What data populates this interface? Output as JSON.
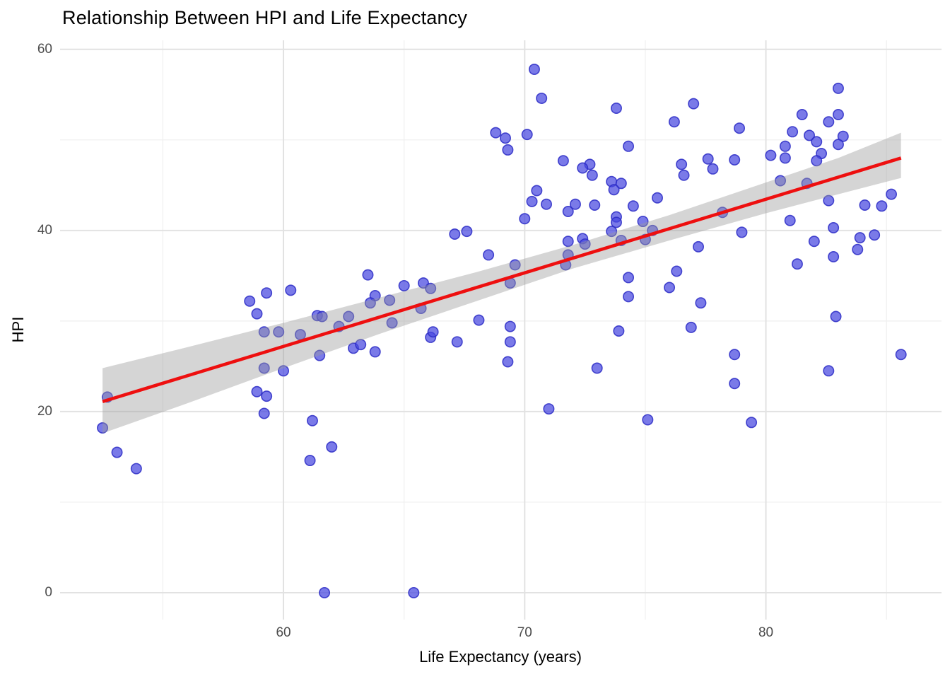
{
  "chart_data": {
    "type": "scatter",
    "title": "Relationship Between HPI and Life Expectancy",
    "xlabel": "Life Expectancy (years)",
    "ylabel": "HPI",
    "xlim": [
      50.74,
      87.28
    ],
    "ylim": [
      -2.97,
      61.0
    ],
    "x_ticks": [
      60,
      70,
      80
    ],
    "x_minor_ticks": [
      55,
      65,
      75,
      85
    ],
    "y_ticks": [
      0,
      20,
      40,
      60
    ],
    "y_minor_ticks": [
      10,
      30,
      50
    ],
    "grid": "on",
    "legend": "none",
    "colors": {
      "point_fill": "#4646df",
      "point_stroke": "#2c2cc6",
      "regression_line": "#ee0f0f",
      "confidence_band": "#9b9b9b",
      "grid_major": "#e2e2e2",
      "grid_minor": "#efefef",
      "tick_text": "#4d4d4d",
      "title_text": "#000000"
    },
    "points": [
      [
        70.4,
        57.8
      ],
      [
        70.7,
        54.6
      ],
      [
        73.8,
        53.5
      ],
      [
        77.0,
        54.0
      ],
      [
        76.2,
        52.0
      ],
      [
        70.1,
        50.6
      ],
      [
        68.8,
        50.8
      ],
      [
        69.2,
        50.2
      ],
      [
        69.3,
        48.9
      ],
      [
        74.3,
        49.3
      ],
      [
        71.6,
        47.7
      ],
      [
        72.7,
        47.3
      ],
      [
        72.4,
        46.9
      ],
      [
        72.8,
        46.1
      ],
      [
        73.6,
        45.4
      ],
      [
        74.0,
        45.2
      ],
      [
        73.7,
        44.5
      ],
      [
        76.5,
        47.3
      ],
      [
        76.6,
        46.1
      ],
      [
        77.6,
        47.9
      ],
      [
        77.8,
        46.8
      ],
      [
        78.7,
        47.8
      ],
      [
        70.5,
        44.4
      ],
      [
        70.3,
        43.2
      ],
      [
        70.9,
        42.9
      ],
      [
        71.8,
        42.1
      ],
      [
        72.1,
        42.9
      ],
      [
        72.9,
        42.8
      ],
      [
        74.5,
        42.7
      ],
      [
        75.5,
        43.6
      ],
      [
        70.0,
        41.3
      ],
      [
        73.8,
        41.5
      ],
      [
        73.8,
        40.9
      ],
      [
        74.9,
        41.0
      ],
      [
        75.3,
        40.0
      ],
      [
        73.6,
        39.9
      ],
      [
        74.0,
        38.9
      ],
      [
        71.8,
        38.8
      ],
      [
        72.4,
        39.1
      ],
      [
        72.5,
        38.5
      ],
      [
        71.8,
        37.3
      ],
      [
        71.7,
        36.2
      ],
      [
        69.6,
        36.2
      ],
      [
        69.4,
        34.2
      ],
      [
        78.2,
        42.0
      ],
      [
        83.0,
        55.7
      ],
      [
        81.5,
        52.8
      ],
      [
        83.0,
        52.8
      ],
      [
        82.6,
        52.0
      ],
      [
        81.1,
        50.9
      ],
      [
        81.8,
        50.5
      ],
      [
        83.2,
        50.4
      ],
      [
        82.1,
        49.8
      ],
      [
        83.0,
        49.5
      ],
      [
        80.8,
        49.3
      ],
      [
        78.9,
        51.3
      ],
      [
        80.2,
        48.3
      ],
      [
        80.8,
        48.0
      ],
      [
        82.3,
        48.5
      ],
      [
        82.1,
        47.7
      ],
      [
        80.6,
        45.5
      ],
      [
        81.7,
        45.2
      ],
      [
        82.6,
        43.3
      ],
      [
        84.1,
        42.8
      ],
      [
        84.8,
        42.7
      ],
      [
        85.2,
        44.0
      ],
      [
        81.0,
        41.1
      ],
      [
        82.8,
        40.3
      ],
      [
        79.0,
        39.8
      ],
      [
        84.5,
        39.5
      ],
      [
        83.9,
        39.2
      ],
      [
        82.0,
        38.8
      ],
      [
        83.8,
        37.9
      ],
      [
        82.8,
        37.1
      ],
      [
        81.3,
        36.3
      ],
      [
        82.9,
        30.5
      ],
      [
        78.7,
        26.3
      ],
      [
        85.6,
        26.3
      ],
      [
        82.6,
        24.5
      ],
      [
        78.7,
        23.1
      ],
      [
        79.4,
        18.8
      ],
      [
        52.7,
        21.6
      ],
      [
        52.5,
        18.2
      ],
      [
        53.1,
        15.5
      ],
      [
        53.9,
        13.7
      ],
      [
        58.6,
        32.2
      ],
      [
        59.3,
        33.1
      ],
      [
        58.9,
        30.8
      ],
      [
        59.2,
        28.8
      ],
      [
        59.8,
        28.8
      ],
      [
        59.2,
        24.8
      ],
      [
        60.0,
        24.5
      ],
      [
        58.9,
        22.2
      ],
      [
        59.3,
        21.7
      ],
      [
        59.2,
        19.8
      ],
      [
        67.1,
        39.6
      ],
      [
        67.6,
        39.9
      ],
      [
        68.5,
        37.3
      ],
      [
        63.5,
        35.1
      ],
      [
        60.3,
        33.4
      ],
      [
        65.0,
        33.9
      ],
      [
        65.8,
        34.2
      ],
      [
        66.1,
        33.6
      ],
      [
        63.8,
        32.8
      ],
      [
        63.6,
        32.0
      ],
      [
        64.4,
        32.3
      ],
      [
        61.4,
        30.6
      ],
      [
        61.6,
        30.5
      ],
      [
        62.7,
        30.5
      ],
      [
        62.3,
        29.4
      ],
      [
        64.5,
        29.8
      ],
      [
        65.7,
        31.4
      ],
      [
        60.7,
        28.5
      ],
      [
        61.5,
        26.2
      ],
      [
        62.9,
        27.0
      ],
      [
        63.2,
        27.4
      ],
      [
        63.8,
        26.6
      ],
      [
        66.1,
        28.2
      ],
      [
        66.2,
        28.8
      ],
      [
        67.2,
        27.7
      ],
      [
        68.1,
        30.1
      ],
      [
        61.2,
        19.0
      ],
      [
        62.0,
        16.1
      ],
      [
        61.1,
        14.6
      ],
      [
        61.7,
        0.0
      ],
      [
        65.4,
        0.0
      ],
      [
        69.4,
        29.4
      ],
      [
        69.4,
        27.7
      ],
      [
        69.3,
        25.5
      ],
      [
        76.3,
        35.5
      ],
      [
        74.3,
        34.8
      ],
      [
        76.0,
        33.7
      ],
      [
        74.3,
        32.7
      ],
      [
        77.3,
        32.0
      ],
      [
        73.9,
        28.9
      ],
      [
        76.9,
        29.3
      ],
      [
        73.0,
        24.8
      ],
      [
        71.0,
        20.3
      ],
      [
        75.1,
        19.1
      ],
      [
        77.2,
        38.2
      ],
      [
        75.0,
        39.0
      ]
    ],
    "regression": {
      "x": [
        52.5,
        85.6
      ],
      "y": [
        21.1,
        48.0
      ]
    },
    "confidence_band": [
      [
        52.5,
        24.8,
        17.6
      ],
      [
        56.0,
        27.1,
        20.9
      ],
      [
        60.0,
        29.8,
        24.8
      ],
      [
        64.0,
        32.6,
        28.6
      ],
      [
        68.0,
        35.4,
        32.2
      ],
      [
        72.0,
        38.4,
        35.8
      ],
      [
        76.0,
        41.7,
        38.9
      ],
      [
        80.0,
        45.3,
        41.9
      ],
      [
        83.0,
        48.0,
        44.0
      ],
      [
        85.6,
        50.8,
        45.8
      ]
    ]
  }
}
